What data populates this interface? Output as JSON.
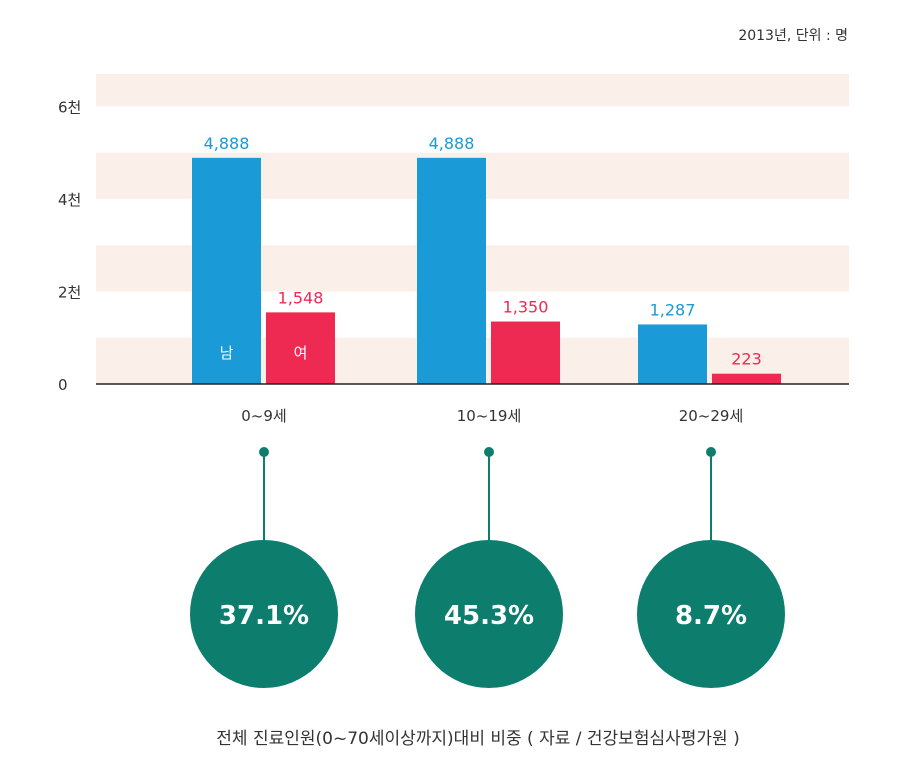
{
  "unit_note": "2013년, 단위 : 명",
  "chart_data": {
    "type": "bar",
    "categories": [
      "0~9세",
      "10~19세",
      "20~29세"
    ],
    "series": [
      {
        "name": "남",
        "color": "#1a9ad6",
        "values": [
          4888,
          4888,
          1287
        ],
        "labels": [
          "4,888",
          "4,888",
          "1,287"
        ]
      },
      {
        "name": "여",
        "color": "#ee2a52",
        "values": [
          1548,
          1350,
          223
        ],
        "labels": [
          "1,548",
          "1,350",
          "223"
        ]
      }
    ],
    "yticks": [
      {
        "value": 0,
        "label": "0"
      },
      {
        "value": 2000,
        "label": "2천"
      },
      {
        "value": 4000,
        "label": "4천"
      },
      {
        "value": 6000,
        "label": "6천"
      }
    ],
    "ylim": [
      0,
      6700
    ],
    "band_color": "#fbefe9",
    "value_label_colors": {
      "male": "#1a9ad6",
      "female": "#ee2a52"
    }
  },
  "percentages": {
    "values": [
      "37.1%",
      "45.3%",
      "8.7%"
    ],
    "circle_color": "#0d7d6e"
  },
  "caption": "전체 진료인원(0~70세이상까지)대비 비중  ( 자료 / 건강보험심사평가원 )"
}
